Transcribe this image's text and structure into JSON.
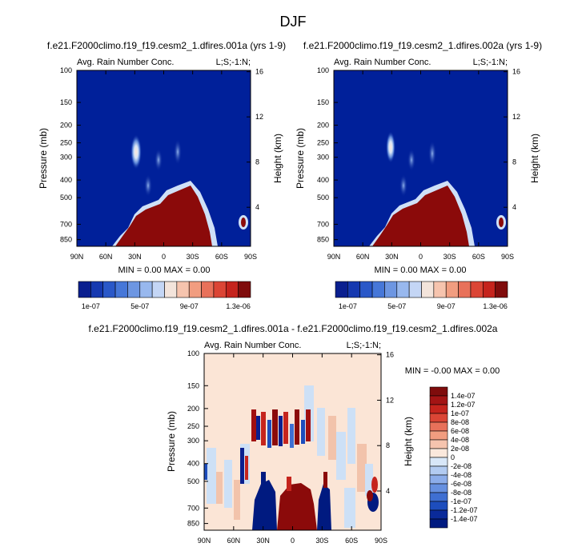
{
  "figure_title": "DJF",
  "chart_data": [
    {
      "type": "heatmap",
      "title": "f.e21.F2000climo.f19_f19.cesm2_1.dfires.001a (yrs 1-9)",
      "subtitle_left": "Avg. Rain Number Conc.",
      "subtitle_right": "L;S;-1:N;",
      "xlabel": "",
      "ylabel": "Pressure (mb)",
      "ylabel_right": "Height (km)",
      "x_ticks": [
        "90N",
        "60N",
        "30N",
        "0",
        "30S",
        "60S",
        "90S"
      ],
      "y_ticks": [
        100,
        150,
        200,
        250,
        300,
        400,
        500,
        700,
        850
      ],
      "y_ticks_right": [
        16,
        12,
        8,
        4
      ],
      "stats": "MIN =  0.00  MAX =  0.00",
      "colorbar_labels": [
        "1e-07",
        "5e-07",
        "9e-07",
        "1.3e-06"
      ],
      "colorbar_colors": [
        "#0a1f8f",
        "#1639b0",
        "#2a58c8",
        "#4677d8",
        "#6d96e2",
        "#98b8ee",
        "#c4d6f5",
        "#f3e4db",
        "#f6c4ae",
        "#f19d80",
        "#e8715a",
        "#db4535",
        "#c5241d",
        "#7f0c0c"
      ],
      "field": {
        "background": "#00209a",
        "land": "#8b0a0a"
      }
    },
    {
      "type": "heatmap",
      "title": "f.e21.F2000climo.f19_f19.cesm2_1.dfires.002a (yrs 1-9)",
      "subtitle_left": "Avg. Rain Number Conc.",
      "subtitle_right": "L;S;-1:N;",
      "xlabel": "",
      "ylabel": "Pressure (mb)",
      "ylabel_right": "Height (km)",
      "x_ticks": [
        "90N",
        "60N",
        "30N",
        "0",
        "30S",
        "60S",
        "90S"
      ],
      "y_ticks": [
        100,
        150,
        200,
        250,
        300,
        400,
        500,
        700,
        850
      ],
      "y_ticks_right": [
        16,
        12,
        8,
        4
      ],
      "stats": "MIN =  0.00  MAX =  0.00",
      "colorbar_labels": [
        "1e-07",
        "5e-07",
        "9e-07",
        "1.3e-06"
      ],
      "colorbar_colors": [
        "#0a1f8f",
        "#1639b0",
        "#2a58c8",
        "#4677d8",
        "#6d96e2",
        "#98b8ee",
        "#c4d6f5",
        "#f3e4db",
        "#f6c4ae",
        "#f19d80",
        "#e8715a",
        "#db4535",
        "#c5241d",
        "#7f0c0c"
      ],
      "field": {
        "background": "#00209a",
        "land": "#8b0a0a"
      }
    },
    {
      "type": "heatmap",
      "title": "f.e21.F2000climo.f19_f19.cesm2_1.dfires.001a - f.e21.F2000climo.f19_f19.cesm2_1.dfires.002a",
      "subtitle_left": "Avg. Rain Number Conc.",
      "subtitle_right": "L;S;-1:N;",
      "xlabel": "",
      "ylabel": "Pressure (mb)",
      "ylabel_right": "Height (km)",
      "x_ticks": [
        "90N",
        "60N",
        "30N",
        "0",
        "30S",
        "60S",
        "90S"
      ],
      "y_ticks": [
        100,
        150,
        200,
        250,
        300,
        400,
        500,
        700,
        850
      ],
      "y_ticks_right": [
        16,
        12,
        8,
        4
      ],
      "stats": "MIN = -0.00  MAX =  0.00",
      "colorbar_labels": [
        "1.4e-07",
        "1.2e-07",
        "1e-07",
        "8e-08",
        "6e-08",
        "4e-08",
        "2e-08",
        "0",
        "-2e-08",
        "-4e-08",
        "-6e-08",
        "-8e-08",
        "-1e-07",
        "-1.2e-07",
        "-1.4e-07"
      ],
      "colorbar_colors": [
        "#7f0c0c",
        "#a31414",
        "#c5241d",
        "#db4535",
        "#e8715a",
        "#f19d80",
        "#f6c4ae",
        "#fae8dc",
        "#d8e7f8",
        "#b2cbf1",
        "#8cadea",
        "#6690e0",
        "#3f6fd2",
        "#1d4dbd",
        "#0a2a9a",
        "#001a80"
      ],
      "field": {
        "background": "#fbe5d6"
      }
    }
  ]
}
